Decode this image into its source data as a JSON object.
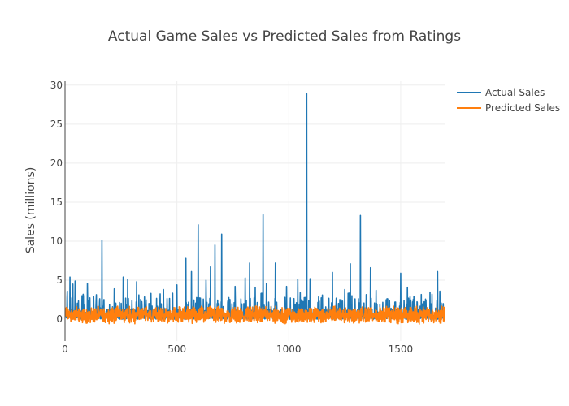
{
  "chart_data": {
    "type": "line",
    "title": "Actual Game Sales vs Predicted Sales from Ratings",
    "xlabel": "",
    "ylabel": "Sales (millions)",
    "xlim": [
      0,
      1700
    ],
    "ylim": [
      -2.8,
      30.5
    ],
    "x_ticks": [
      0,
      500,
      1000,
      1500
    ],
    "y_ticks": [
      0,
      5,
      10,
      15,
      20,
      25,
      30
    ],
    "grid": true,
    "legend_position": "top-right",
    "series": [
      {
        "name": "Actual Sales",
        "color": "#1f77b4",
        "peaks": [
          [
            10,
            3.6
          ],
          [
            22,
            5.4
          ],
          [
            35,
            4.5
          ],
          [
            45,
            4.9
          ],
          [
            100,
            4.6
          ],
          [
            165,
            10.1
          ],
          [
            220,
            3.9
          ],
          [
            260,
            5.4
          ],
          [
            280,
            5.1
          ],
          [
            320,
            4.8
          ],
          [
            440,
            3.8
          ],
          [
            500,
            4.4
          ],
          [
            540,
            7.8
          ],
          [
            565,
            6.1
          ],
          [
            595,
            12.1
          ],
          [
            630,
            5.0
          ],
          [
            650,
            6.7
          ],
          [
            670,
            9.5
          ],
          [
            700,
            10.9
          ],
          [
            760,
            4.2
          ],
          [
            805,
            5.3
          ],
          [
            825,
            7.2
          ],
          [
            850,
            4.1
          ],
          [
            885,
            13.4
          ],
          [
            900,
            4.6
          ],
          [
            940,
            7.2
          ],
          [
            990,
            4.2
          ],
          [
            1040,
            5.1
          ],
          [
            1080,
            28.9
          ],
          [
            1095,
            5.2
          ],
          [
            1150,
            3.1
          ],
          [
            1195,
            6.0
          ],
          [
            1250,
            3.8
          ],
          [
            1275,
            7.1
          ],
          [
            1320,
            13.3
          ],
          [
            1365,
            6.6
          ],
          [
            1390,
            3.7
          ],
          [
            1500,
            5.9
          ],
          [
            1530,
            4.1
          ],
          [
            1640,
            3.2
          ],
          [
            1665,
            6.1
          ],
          [
            1675,
            3.6
          ],
          [
            1690,
            2.0
          ]
        ]
      },
      {
        "name": "Predicted Sales",
        "color": "#ff7f0e",
        "low": -0.9,
        "high": 2.0
      }
    ]
  }
}
